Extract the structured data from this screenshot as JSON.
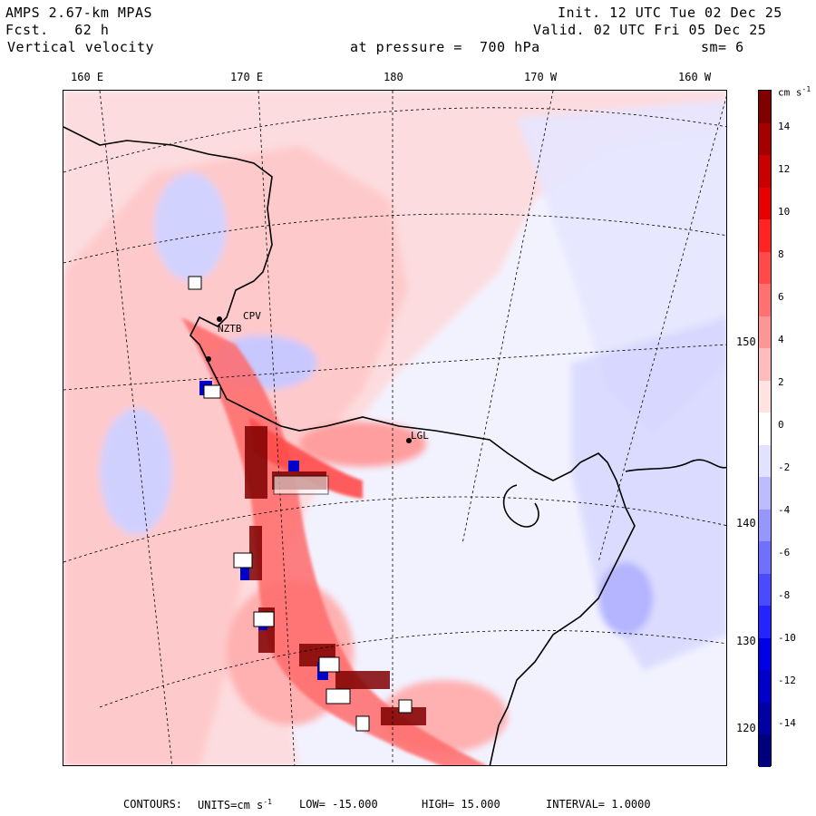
{
  "header": {
    "model": "AMPS 2.67-km MPAS",
    "fcst_label": "Fcst.",
    "fcst_value": "62 h",
    "field": "Vertical velocity",
    "level_label": "at pressure =",
    "level_value": "700 hPa",
    "init": "Init. 12 UTC Tue 02 Dec 25",
    "valid": "Valid. 02 UTC Fri 05 Dec 25",
    "smooth": "sm= 6"
  },
  "lon_labels": [
    "160 E",
    "170 E",
    "180",
    "170 W",
    "160 W"
  ],
  "lat_labels": [
    "150 W",
    "140 W",
    "130 W",
    "120 W"
  ],
  "stations": [
    "CPV",
    "NZTB",
    "LGL"
  ],
  "colorbar": {
    "unit": "cm s",
    "unit_exp": "-1",
    "ticks": [
      "14",
      "12",
      "10",
      "8",
      "6",
      "4",
      "2",
      "0",
      "-2",
      "-4",
      "-6",
      "-8",
      "-10",
      "-12",
      "-14"
    ],
    "colors": [
      "#7f0000",
      "#a30000",
      "#c80000",
      "#e60000",
      "#ff2424",
      "#ff4a4a",
      "#ff7070",
      "#ff9696",
      "#ffbcbc",
      "#ffe2e2",
      "#ffffff",
      "#e2e2ff",
      "#bcbcff",
      "#9696ff",
      "#7070ff",
      "#4a4aff",
      "#2424ff",
      "#0000e6",
      "#0000c8",
      "#0000a3",
      "#00007f"
    ]
  },
  "footer": {
    "contours_label": "CONTOURS:",
    "units_label": "UNITS=cm s",
    "units_exp": "-1",
    "low": "LOW= -15.000",
    "high": "HIGH= 15.000",
    "interval": "INTERVAL= 1.0000"
  }
}
